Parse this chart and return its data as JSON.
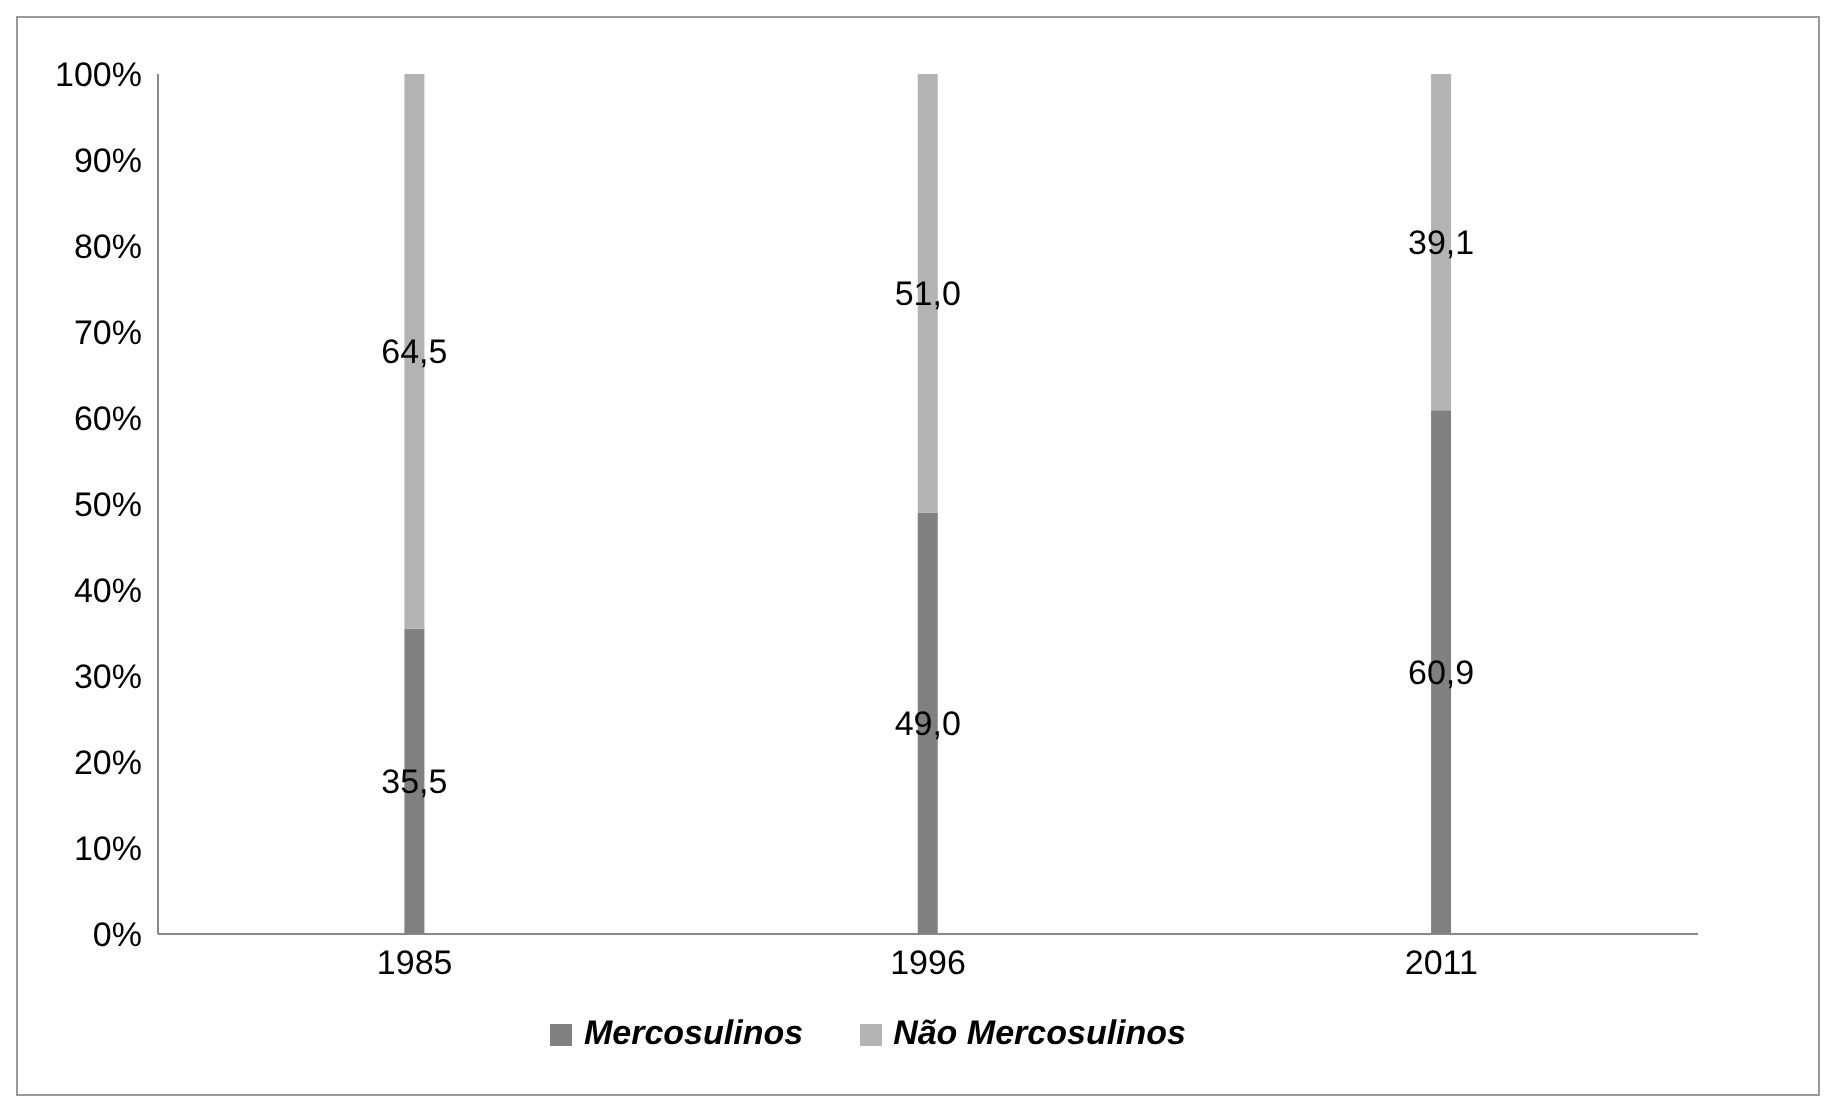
{
  "chart_data": {
    "type": "bar",
    "stacked": true,
    "categories": [
      "1985",
      "1996",
      "2011"
    ],
    "series": [
      {
        "name": "Mercosulinos",
        "color": "#808080",
        "values": [
          35.5,
          49.0,
          60.9
        ],
        "value_labels": [
          "35,5",
          "49,0",
          "60,9"
        ]
      },
      {
        "name": "Não Mercosulinos",
        "color": "#b3b3b3",
        "values": [
          64.5,
          51.0,
          39.1
        ],
        "value_labels": [
          "64,5",
          "51,0",
          "39,1"
        ]
      }
    ],
    "ylim": [
      0,
      100
    ],
    "yticks": [
      {
        "value": 0,
        "label": "0%"
      },
      {
        "value": 10,
        "label": "10%"
      },
      {
        "value": 20,
        "label": "20%"
      },
      {
        "value": 30,
        "label": "30%"
      },
      {
        "value": 40,
        "label": "40%"
      },
      {
        "value": 50,
        "label": "50%"
      },
      {
        "value": 60,
        "label": "60%"
      },
      {
        "value": 70,
        "label": "70%"
      },
      {
        "value": 80,
        "label": "80%"
      },
      {
        "value": 90,
        "label": "90%"
      },
      {
        "value": 100,
        "label": "100%"
      }
    ],
    "legend": "bottom"
  }
}
